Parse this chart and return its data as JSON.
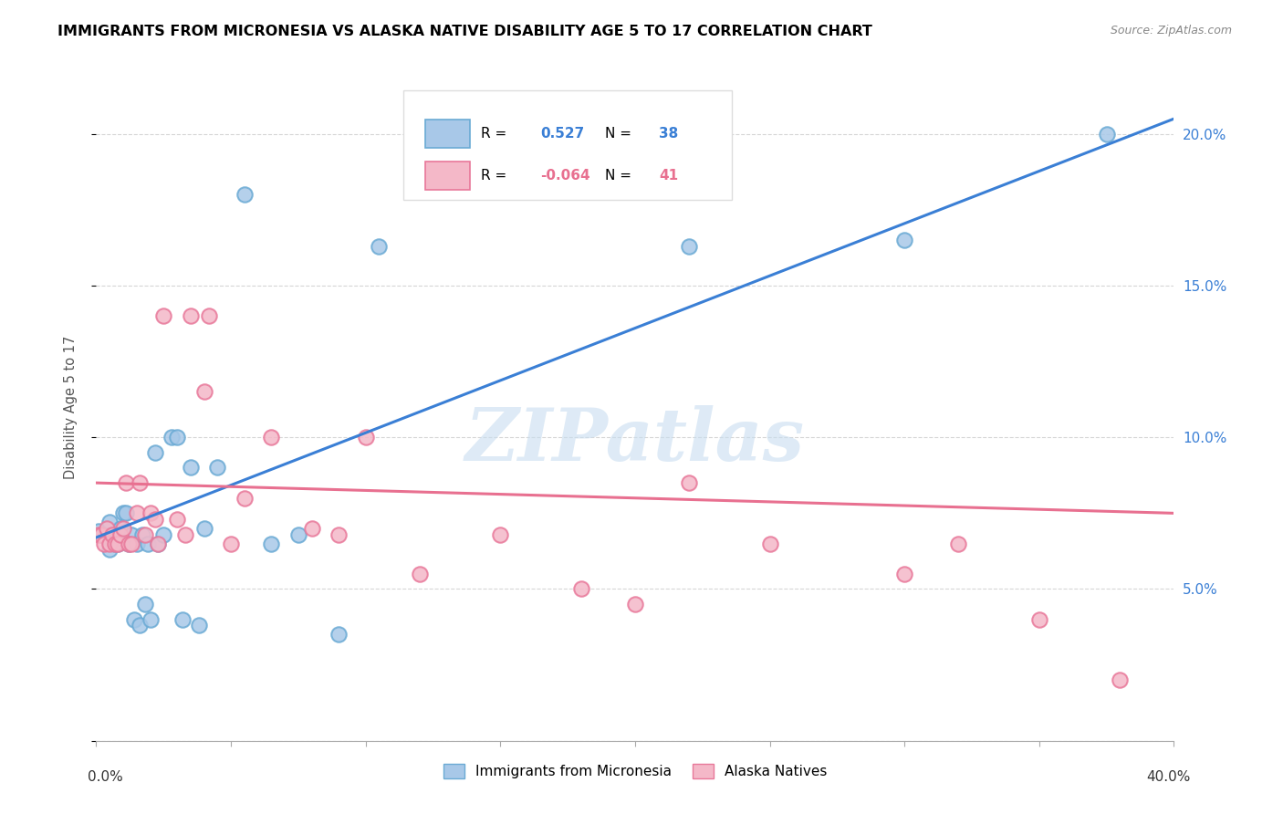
{
  "title": "IMMIGRANTS FROM MICRONESIA VS ALASKA NATIVE DISABILITY AGE 5 TO 17 CORRELATION CHART",
  "source": "Source: ZipAtlas.com",
  "ylabel": "Disability Age 5 to 17",
  "yticks": [
    "",
    "5.0%",
    "10.0%",
    "15.0%",
    "20.0%"
  ],
  "ytick_vals": [
    0,
    0.05,
    0.1,
    0.15,
    0.2
  ],
  "xrange": [
    0,
    0.4
  ],
  "yrange": [
    0,
    0.22
  ],
  "blue_R": "0.527",
  "blue_N": "38",
  "pink_R": "-0.064",
  "pink_N": "41",
  "blue_color": "#a8c8e8",
  "pink_color": "#f4b8c8",
  "blue_edge_color": "#6aaad4",
  "pink_edge_color": "#e8789a",
  "blue_line_color": "#3a7fd5",
  "pink_line_color": "#e87090",
  "watermark": "ZIPatlas",
  "legend_label_blue": "Immigrants from Micronesia",
  "legend_label_pink": "Alaska Natives",
  "blue_scatter_x": [
    0.001,
    0.003,
    0.004,
    0.005,
    0.005,
    0.006,
    0.007,
    0.008,
    0.009,
    0.01,
    0.011,
    0.012,
    0.013,
    0.014,
    0.015,
    0.016,
    0.017,
    0.018,
    0.019,
    0.02,
    0.022,
    0.023,
    0.025,
    0.028,
    0.03,
    0.032,
    0.035,
    0.038,
    0.04,
    0.045,
    0.055,
    0.065,
    0.075,
    0.09,
    0.105,
    0.22,
    0.3,
    0.375
  ],
  "blue_scatter_y": [
    0.069,
    0.068,
    0.067,
    0.063,
    0.072,
    0.068,
    0.065,
    0.065,
    0.07,
    0.075,
    0.075,
    0.065,
    0.068,
    0.04,
    0.065,
    0.038,
    0.068,
    0.045,
    0.065,
    0.04,
    0.095,
    0.065,
    0.068,
    0.1,
    0.1,
    0.04,
    0.09,
    0.038,
    0.07,
    0.09,
    0.18,
    0.065,
    0.068,
    0.035,
    0.163,
    0.163,
    0.165,
    0.2
  ],
  "pink_scatter_x": [
    0.001,
    0.002,
    0.003,
    0.004,
    0.005,
    0.006,
    0.007,
    0.008,
    0.009,
    0.01,
    0.011,
    0.012,
    0.013,
    0.015,
    0.016,
    0.018,
    0.02,
    0.022,
    0.023,
    0.025,
    0.03,
    0.033,
    0.035,
    0.04,
    0.042,
    0.05,
    0.055,
    0.065,
    0.08,
    0.09,
    0.1,
    0.12,
    0.15,
    0.18,
    0.2,
    0.22,
    0.25,
    0.3,
    0.32,
    0.35,
    0.38
  ],
  "pink_scatter_y": [
    0.068,
    0.068,
    0.065,
    0.07,
    0.065,
    0.068,
    0.065,
    0.065,
    0.068,
    0.07,
    0.085,
    0.065,
    0.065,
    0.075,
    0.085,
    0.068,
    0.075,
    0.073,
    0.065,
    0.14,
    0.073,
    0.068,
    0.14,
    0.115,
    0.14,
    0.065,
    0.08,
    0.1,
    0.07,
    0.068,
    0.1,
    0.055,
    0.068,
    0.05,
    0.045,
    0.085,
    0.065,
    0.055,
    0.065,
    0.04,
    0.02
  ],
  "blue_line_x0": 0.0,
  "blue_line_y0": 0.067,
  "blue_line_x1": 0.4,
  "blue_line_y1": 0.205,
  "pink_line_x0": 0.0,
  "pink_line_y0": 0.085,
  "pink_line_x1": 0.4,
  "pink_line_y1": 0.075
}
